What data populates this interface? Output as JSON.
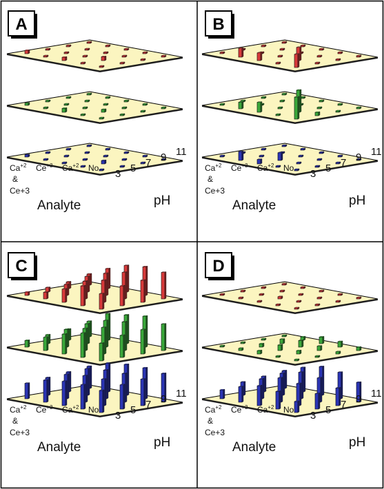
{
  "figure": {
    "panels": [
      "A",
      "B",
      "C",
      "D"
    ],
    "analyte_axis": {
      "title": "Analyte",
      "ticks": [
        {
          "base": "Ca",
          "sup": "+2",
          "lines": [
            "&",
            "Ce+3"
          ]
        },
        {
          "base": "Ce",
          "sup": "+3",
          "lines": []
        },
        {
          "base": "Ca",
          "sup": "+2",
          "lines": []
        },
        {
          "base": "No",
          "sup": "",
          "lines": []
        }
      ]
    },
    "ph_axis": {
      "title": "pH",
      "ticks": [
        "3",
        "5",
        "7",
        "9",
        "11"
      ]
    },
    "colors": {
      "plate": "#fbf5c0",
      "top_layer": "#d83a3a",
      "middle_layer": "#3aa83a",
      "bottom_layer": "#2b35b5",
      "background": "#ffffff"
    }
  },
  "chart_data": [
    {
      "type": "bar",
      "panel": "A",
      "rows": [
        "No",
        "Ca+2",
        "Ce+3",
        "Ca+2 & Ce+3"
      ],
      "columns": [
        "3",
        "5",
        "7",
        "9",
        "11"
      ],
      "layers": [
        {
          "values": [
            [
              0,
              0,
              0,
              0,
              0
            ],
            [
              0,
              0,
              0,
              0,
              0
            ],
            [
              0,
              0,
              0,
              0.35,
              0
            ],
            [
              0.3,
              0,
              0.3,
              0,
              0
            ]
          ]
        },
        {
          "values": [
            [
              0,
              0,
              0,
              0,
              0
            ],
            [
              0,
              0,
              0,
              0,
              0
            ],
            [
              0,
              0,
              0,
              0.25,
              0
            ],
            [
              0.2,
              0,
              0.35,
              0,
              0
            ]
          ]
        },
        {
          "values": [
            [
              0,
              0,
              0,
              0,
              0
            ],
            [
              0,
              0,
              0,
              0,
              0
            ],
            [
              0,
              0,
              0,
              0.3,
              0
            ],
            [
              0.2,
              0,
              0,
              0,
              0
            ]
          ]
        }
      ]
    },
    {
      "type": "bar",
      "panel": "B",
      "rows": [
        "No",
        "Ca+2",
        "Ce+3",
        "Ca+2 & Ce+3"
      ],
      "columns": [
        "3",
        "5",
        "7",
        "9",
        "11"
      ],
      "layers": [
        {
          "values": [
            [
              0,
              0,
              0,
              0,
              0
            ],
            [
              0,
              0,
              0,
              0,
              0
            ],
            [
              0,
              0,
              0,
              1.2,
              0
            ],
            [
              0,
              0.8,
              0.7,
              0,
              1.2
            ]
          ]
        },
        {
          "values": [
            [
              0,
              0,
              0,
              0,
              0
            ],
            [
              0,
              0,
              0,
              0,
              0
            ],
            [
              0,
              0,
              0,
              2.0,
              0.3
            ],
            [
              0,
              0.6,
              0.9,
              0,
              2.0
            ]
          ]
        },
        {
          "values": [
            [
              0,
              0,
              0,
              0,
              0
            ],
            [
              0,
              0,
              0,
              0,
              0
            ],
            [
              0,
              0,
              0.7,
              0,
              0
            ],
            [
              0,
              0.8,
              0.4,
              0,
              0
            ]
          ]
        }
      ]
    },
    {
      "type": "bar",
      "panel": "C",
      "rows": [
        "No",
        "Ca+2",
        "Ce+3",
        "Ca+2 & Ce+3"
      ],
      "columns": [
        "3",
        "5",
        "7",
        "9",
        "11"
      ],
      "layers": [
        {
          "values": [
            [
              1.0,
              1.8,
              2.4,
              2.6,
              2.4
            ],
            [
              0.6,
              1.4,
              2.0,
              2.4,
              2.0
            ],
            [
              0.4,
              1.0,
              1.6,
              2.0,
              1.8
            ],
            [
              0.3,
              0.6,
              1.2,
              1.8,
              1.4
            ]
          ]
        },
        {
          "values": [
            [
              1.4,
              2.4,
              2.6,
              2.8,
              2.4
            ],
            [
              1.0,
              1.8,
              2.4,
              2.6,
              2.2
            ],
            [
              0.8,
              1.6,
              2.0,
              2.4,
              2.0
            ],
            [
              0.6,
              1.2,
              1.8,
              2.2,
              1.6
            ]
          ]
        },
        {
          "values": [
            [
              2.0,
              2.6,
              2.8,
              2.8,
              2.6
            ],
            [
              1.8,
              2.4,
              2.6,
              2.6,
              2.4
            ],
            [
              1.6,
              2.2,
              2.4,
              2.4,
              2.2
            ],
            [
              1.4,
              2.0,
              2.2,
              2.2,
              2.0
            ]
          ]
        }
      ]
    },
    {
      "type": "bar",
      "panel": "D",
      "rows": [
        "No",
        "Ca+2",
        "Ce+3",
        "Ca+2 & Ce+3"
      ],
      "columns": [
        "3",
        "5",
        "7",
        "9",
        "11"
      ],
      "layers": [
        {
          "values": [
            [
              0,
              0,
              0,
              0,
              0
            ],
            [
              0,
              0,
              0,
              0,
              0
            ],
            [
              0,
              0,
              0.2,
              0,
              0
            ],
            [
              0,
              0,
              0,
              0,
              0
            ]
          ]
        },
        {
          "values": [
            [
              0,
              0.3,
              0.6,
              0.5,
              0.3
            ],
            [
              0,
              0.4,
              0.6,
              0.4,
              0.2
            ],
            [
              0,
              0.3,
              0.5,
              0.3,
              0
            ],
            [
              0,
              0.2,
              0.3,
              0,
              0
            ]
          ]
        },
        {
          "values": [
            [
              1.6,
              2.2,
              2.6,
              2.4,
              1.8
            ],
            [
              1.4,
              2.0,
              2.4,
              2.2,
              1.6
            ],
            [
              1.2,
              1.8,
              2.2,
              2.0,
              1.4
            ],
            [
              0.8,
              1.4,
              1.8,
              1.6,
              1.0
            ]
          ]
        }
      ]
    }
  ]
}
